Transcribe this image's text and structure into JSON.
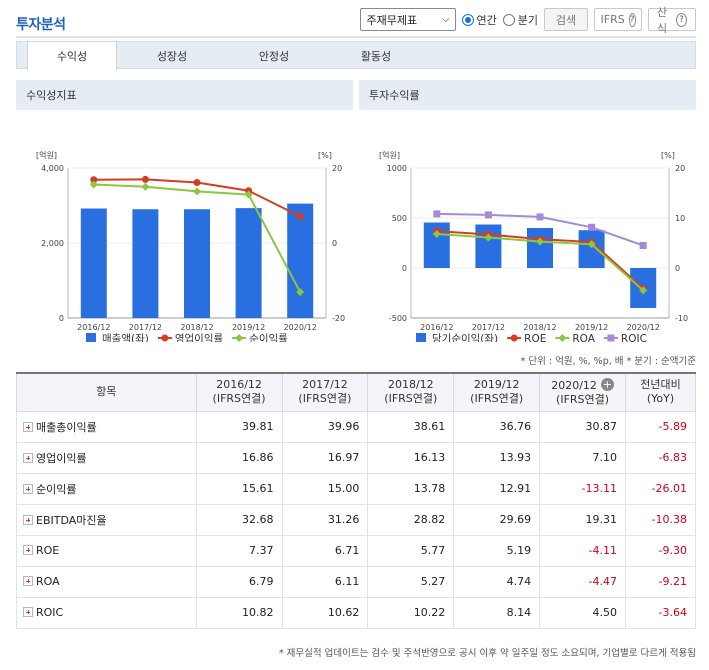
{
  "header": {
    "title": "투자분석",
    "select_value": "주재무제표",
    "radio_annual": "연간",
    "radio_quarter": "분기",
    "search_label": "검색",
    "ifrs_label": "IFRS",
    "formula_label": "산식",
    "help_glyph": "?"
  },
  "tabs": [
    "수익성",
    "성장성",
    "안정성",
    "활동성"
  ],
  "colors": {
    "bar": "#2a6fe0",
    "op_margin": "#d63c1f",
    "net_margin": "#8dc63f",
    "roic": "#a48ad8",
    "accent": "#1f5fbf"
  },
  "chart_data": [
    {
      "type": "bar",
      "title": "수익성지표",
      "categories": [
        "2016/12",
        "2017/12",
        "2018/12",
        "2019/12",
        "2020/12"
      ],
      "y_left_unit": "[억원]",
      "y_right_unit": "[%]",
      "y_left_ticks": [
        "4,000",
        "2,000",
        "0"
      ],
      "y_right_ticks": [
        "20",
        "0",
        "-20"
      ],
      "ylim_left": [
        0,
        4000
      ],
      "ylim_right": [
        -20,
        20
      ],
      "series": [
        {
          "name": "매출액(좌)",
          "type": "bar",
          "axis": "left",
          "values": [
            2920,
            2900,
            2900,
            2930,
            3050
          ]
        },
        {
          "name": "영업이익률",
          "type": "line",
          "axis": "right",
          "values": [
            16.86,
            16.97,
            16.13,
            13.93,
            7.1
          ]
        },
        {
          "name": "순이익률",
          "type": "line",
          "axis": "right",
          "values": [
            15.61,
            15.0,
            13.78,
            12.91,
            -13.11
          ]
        }
      ],
      "legend": "bottom"
    },
    {
      "type": "bar",
      "title": "투자수익률",
      "categories": [
        "2016/12",
        "2017/12",
        "2018/12",
        "2019/12",
        "2020/12"
      ],
      "y_left_unit": "[억원]",
      "y_right_unit": "[%]",
      "y_left_ticks": [
        "1000",
        "500",
        "0",
        "-500"
      ],
      "y_right_ticks": [
        "20",
        "10",
        "0",
        "-10"
      ],
      "ylim_left": [
        -500,
        1000
      ],
      "ylim_right": [
        -10,
        20
      ],
      "series": [
        {
          "name": "당기순이익(좌)",
          "type": "bar",
          "axis": "left",
          "values": [
            455,
            435,
            400,
            378,
            -400
          ]
        },
        {
          "name": "ROE",
          "type": "line",
          "axis": "right",
          "values": [
            7.37,
            6.71,
            5.77,
            5.19,
            -4.11
          ]
        },
        {
          "name": "ROA",
          "type": "line",
          "axis": "right",
          "values": [
            6.79,
            6.11,
            5.27,
            4.74,
            -4.47
          ]
        },
        {
          "name": "ROIC",
          "type": "line",
          "axis": "right",
          "values": [
            10.82,
            10.62,
            10.22,
            8.14,
            4.5
          ]
        }
      ],
      "legend": "bottom"
    }
  ],
  "unit_note": "* 단위 : 억원, %, %p, 배   * 분기 : 순액기준",
  "table": {
    "item_header": "항목",
    "columns": [
      {
        "year": "2016/12",
        "sub": "(IFRS연결)"
      },
      {
        "year": "2017/12",
        "sub": "(IFRS연결)"
      },
      {
        "year": "2018/12",
        "sub": "(IFRS연결)"
      },
      {
        "year": "2019/12",
        "sub": "(IFRS연결)"
      },
      {
        "year": "2020/12",
        "sub": "(IFRS연결)"
      }
    ],
    "yoy_header": "전년대비",
    "yoy_sub": "(YoY)",
    "rows": [
      {
        "label": "매출총이익률",
        "values": [
          "39.81",
          "39.96",
          "38.61",
          "36.76",
          "30.87"
        ],
        "yoy": "-5.89"
      },
      {
        "label": "영업이익률",
        "values": [
          "16.86",
          "16.97",
          "16.13",
          "13.93",
          "7.10"
        ],
        "yoy": "-6.83"
      },
      {
        "label": "순이익률",
        "values": [
          "15.61",
          "15.00",
          "13.78",
          "12.91",
          "-13.11"
        ],
        "yoy": "-26.01"
      },
      {
        "label": "EBITDA마진율",
        "values": [
          "32.68",
          "31.26",
          "28.82",
          "29.69",
          "19.31"
        ],
        "yoy": "-10.38"
      },
      {
        "label": "ROE",
        "values": [
          "7.37",
          "6.71",
          "5.77",
          "5.19",
          "-4.11"
        ],
        "yoy": "-9.30"
      },
      {
        "label": "ROA",
        "values": [
          "6.79",
          "6.11",
          "5.27",
          "4.74",
          "-4.47"
        ],
        "yoy": "-9.21"
      },
      {
        "label": "ROIC",
        "values": [
          "10.82",
          "10.62",
          "10.22",
          "8.14",
          "4.50"
        ],
        "yoy": "-3.64"
      }
    ]
  },
  "footer_note": "* 재무실적 업데이트는 검수 및 주석반영으로 공시 이후 약 일주일 정도 소요되며, 기업별로 다르게 적용됨"
}
